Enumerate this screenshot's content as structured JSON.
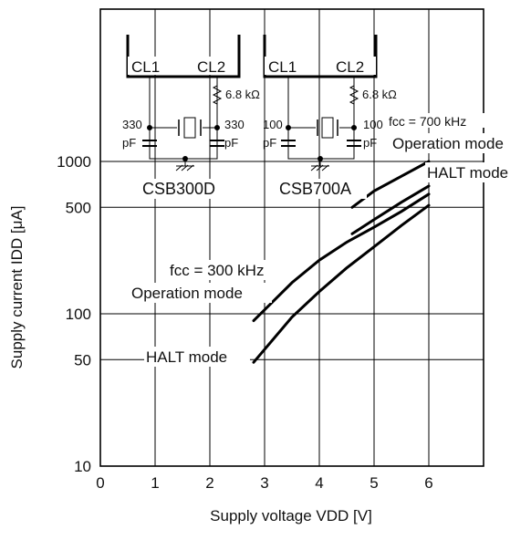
{
  "chart_data": {
    "type": "line",
    "xlabel": "Supply voltage VDD [V]",
    "ylabel": "Supply current IDD [μA]",
    "x_ticks": [
      "0",
      "1",
      "2",
      "3",
      "4",
      "5",
      "6"
    ],
    "y_ticks": [
      "10",
      "50",
      "100",
      "500",
      "1000"
    ],
    "xlim": [
      0,
      7
    ],
    "ylim": [
      10,
      10000
    ],
    "y_scale": "log",
    "x_tick_values": [
      0,
      1,
      2,
      3,
      4,
      5,
      6
    ],
    "y_tick_values": [
      10,
      50,
      100,
      500,
      1000
    ],
    "grid": true,
    "series": [
      {
        "name": "fcc = 700 kHz Operation mode",
        "x": [
          4.6,
          5.0,
          5.5,
          6.0
        ],
        "y": [
          500,
          640,
          800,
          1000
        ]
      },
      {
        "name": "HALT mode",
        "x": [
          4.6,
          5.0,
          5.5,
          6.0
        ],
        "y": [
          335,
          415,
          540,
          690
        ]
      },
      {
        "name": "fcc = 300 kHz Operation mode",
        "x": [
          2.8,
          3.5,
          4.0,
          4.5,
          5.0,
          5.5,
          6.0
        ],
        "y": [
          90,
          160,
          225,
          295,
          370,
          470,
          610
        ]
      },
      {
        "name": "HALT mode",
        "x": [
          2.8,
          3.5,
          4.0,
          4.5,
          5.0,
          5.5,
          6.0
        ],
        "y": [
          48,
          95,
          140,
          200,
          275,
          380,
          515
        ]
      }
    ],
    "annotations": {
      "a700_line1": "fcc = 700 kHz",
      "a700_line2": "Operation mode",
      "a700_halt": "HALT mode",
      "a300_line1": "fcc = 300 kHz",
      "a300_line2": "Operation mode",
      "a300_halt": "HALT mode"
    }
  },
  "circuits": [
    {
      "pin1": "CL1",
      "pin2": "CL2",
      "resistor": "6.8 kΩ",
      "cap_left": "330",
      "cap_right": "330",
      "cap_unit": "pF",
      "name": "CSB300D"
    },
    {
      "pin1": "CL1",
      "pin2": "CL2",
      "resistor": "6.8 kΩ",
      "cap_left": "100",
      "cap_right": "100",
      "cap_unit": "pF",
      "name": "CSB700A"
    }
  ]
}
